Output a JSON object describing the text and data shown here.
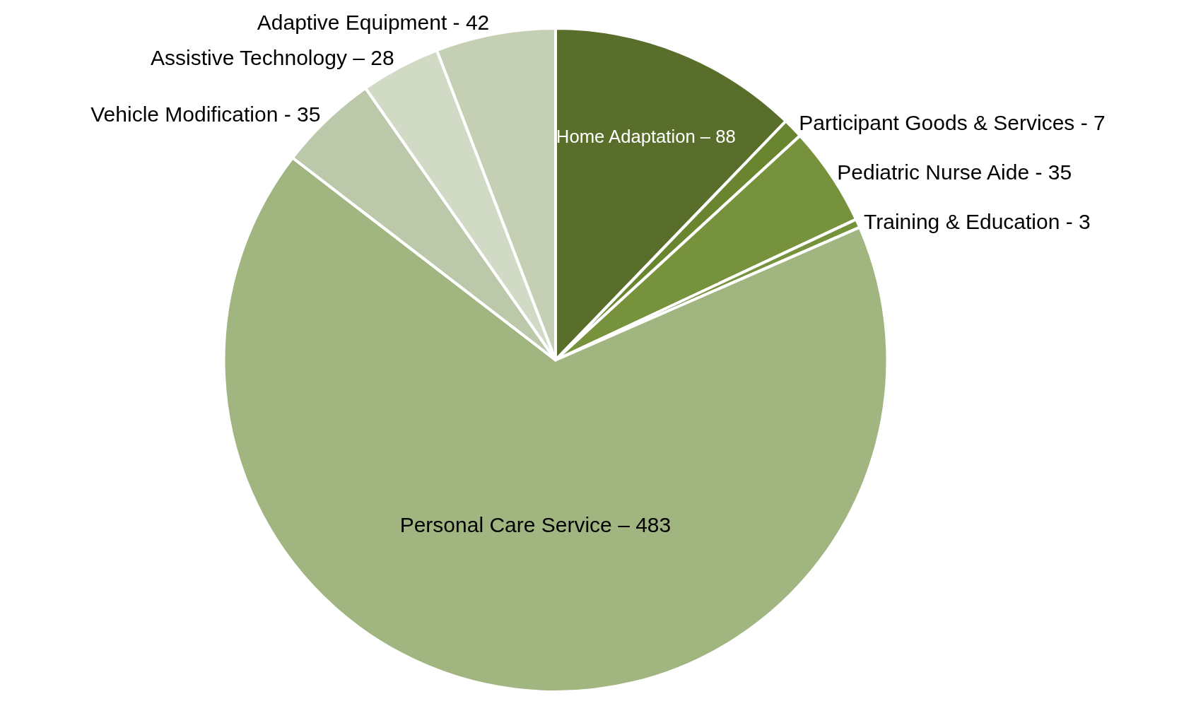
{
  "chart_data": {
    "type": "pie",
    "categories": [
      "Home Adaptation –",
      "Participant Goods & Services -",
      "Pediatric Nurse Aide -",
      "Training & Education -",
      "Personal Care Service –",
      "Vehicle Modification -",
      "Assistive Technology –",
      "Adaptive Equipment -"
    ],
    "values": [
      88,
      7,
      35,
      3,
      483,
      35,
      28,
      42
    ],
    "value_labels": [
      "88",
      "7",
      "35",
      "3",
      "483",
      "35",
      "28",
      "42"
    ],
    "colors": [
      "#5a6e2c",
      "#6a8530",
      "#76923c",
      "#76923c",
      "#a0b580",
      "#bbc8aa",
      "#d0dac4",
      "#c4cfb3"
    ]
  }
}
